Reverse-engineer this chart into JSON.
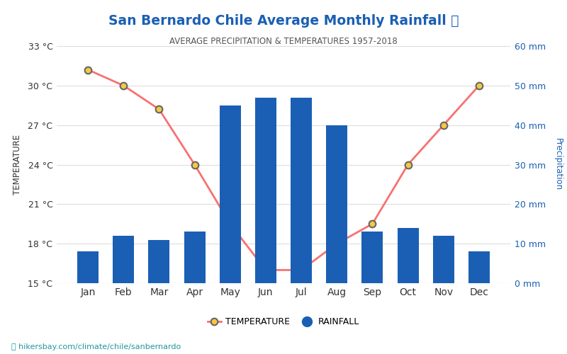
{
  "title": "San Bernardo Chile Average Monthly Rainfall 🌧",
  "subtitle": "AVERAGE PRECIPITATION & TEMPERATURES 1957-2018",
  "months": [
    "Jan",
    "Feb",
    "Mar",
    "Apr",
    "May",
    "Jun",
    "Jul",
    "Aug",
    "Sep",
    "Oct",
    "Nov",
    "Dec"
  ],
  "rainfall_mm": [
    8,
    12,
    11,
    13,
    45,
    47,
    47,
    40,
    13,
    14,
    12,
    8
  ],
  "temperature_c": [
    31.2,
    30.0,
    28.2,
    24.0,
    19.5,
    16.0,
    16.0,
    18.0,
    19.5,
    24.0,
    27.0,
    30.0
  ],
  "bar_color": "#1a5fb4",
  "line_color": "#f87171",
  "marker_face_color": "#f5c842",
  "marker_edge_color": "#666666",
  "left_axis_color": "#333333",
  "right_axis_color": "#1a5fb4",
  "title_color": "#1a5fb4",
  "subtitle_color": "#555555",
  "ylabel_left": "TEMPERATURE",
  "ylabel_right": "Precipitation",
  "ylim_temp": [
    15,
    33
  ],
  "ylim_precip": [
    0,
    60
  ],
  "yticks_temp": [
    15,
    18,
    21,
    24,
    27,
    30,
    33
  ],
  "ytick_labels_temp": [
    "15 °C",
    "18 °C",
    "21 °C",
    "24 °C",
    "27 °C",
    "30 °C",
    "33 °C"
  ],
  "yticks_precip": [
    0,
    10,
    20,
    30,
    40,
    50,
    60
  ],
  "ytick_labels_precip": [
    "0 mm",
    "10 mm",
    "20 mm",
    "30 mm",
    "40 mm",
    "50 mm",
    "60 mm"
  ],
  "watermark": "hikersbay.com/climate/chile/sanbernardo",
  "background_color": "#ffffff",
  "grid_color": "#dddddd"
}
